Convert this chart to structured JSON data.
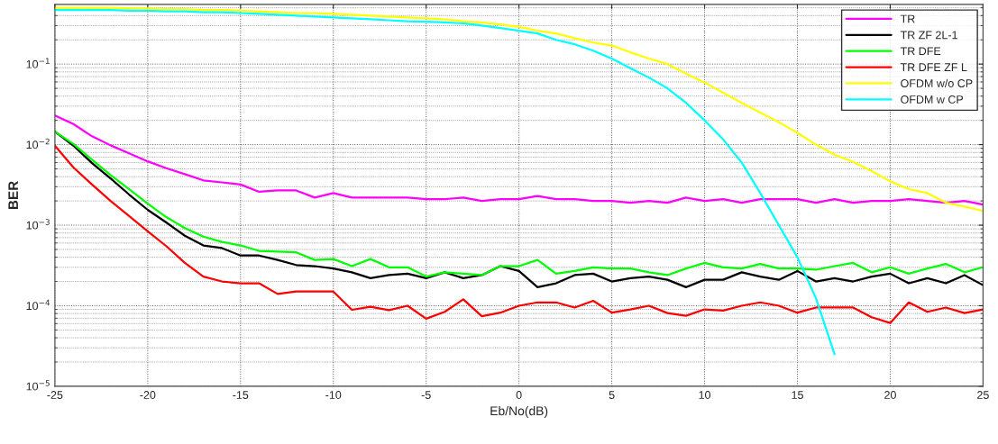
{
  "chart_data": {
    "type": "line",
    "xlabel": "Eb/No(dB)",
    "ylabel": "BER",
    "log": "y",
    "grid": true,
    "legend": "top right",
    "line_style": "solid",
    "marker": "none",
    "xlim": [
      -25,
      25
    ],
    "xticks": [
      -25,
      -20,
      -15,
      -10,
      -5,
      0,
      5,
      10,
      15,
      20,
      25
    ],
    "ylim": [
      1e-05,
      0.55
    ],
    "yticks": [
      {
        "value": 1e-05,
        "label": "10$^{−5}$"
      },
      {
        "value": 0.0001,
        "label": "10$^{−4}$"
      },
      {
        "value": 0.001,
        "label": "10$^{−3}$"
      },
      {
        "value": 0.01,
        "label": "10$^{−2}$"
      },
      {
        "value": 0.1,
        "label": "10$^{−1}$"
      }
    ],
    "x": [
      -25,
      -24,
      -23,
      -22,
      -21,
      -20,
      -19,
      -18,
      -17,
      -16,
      -15,
      -14,
      -13,
      -12,
      -11,
      -10,
      -9,
      -8,
      -7,
      -6,
      -5,
      -4,
      -3,
      -2,
      -1,
      0,
      1,
      2,
      3,
      4,
      5,
      6,
      7,
      8,
      9,
      10,
      11,
      12,
      13,
      14,
      15,
      16,
      17,
      18,
      19,
      20,
      21,
      22,
      23,
      24,
      25
    ],
    "series": [
      {
        "name": "TR",
        "color": "#ff00ff",
        "values": [
          0.023,
          0.018,
          0.0127,
          0.0098,
          0.0078,
          0.0062,
          0.0051,
          0.0043,
          0.0036,
          0.0034,
          0.0032,
          0.0026,
          0.0027,
          0.0027,
          0.0022,
          0.0025,
          0.0022,
          0.0022,
          0.0022,
          0.0022,
          0.0021,
          0.0021,
          0.0022,
          0.002,
          0.0021,
          0.0021,
          0.0023,
          0.0021,
          0.0021,
          0.002,
          0.002,
          0.0019,
          0.002,
          0.0019,
          0.0022,
          0.002,
          0.0021,
          0.0019,
          0.0021,
          0.0021,
          0.0021,
          0.0019,
          0.0021,
          0.0019,
          0.002,
          0.002,
          0.0021,
          0.002,
          0.0019,
          0.002,
          0.0018
        ]
      },
      {
        "name": "TR ZF 2L-1",
        "color": "#000000",
        "values": [
          0.0145,
          0.0097,
          0.0059,
          0.0038,
          0.0024,
          0.00155,
          0.00108,
          0.00074,
          0.00056,
          0.00052,
          0.00042,
          0.00042,
          0.00037,
          0.00032,
          0.00031,
          0.00029,
          0.00026,
          0.00022,
          0.00024,
          0.00025,
          0.00022,
          0.00026,
          0.00022,
          0.00024,
          0.00031,
          0.00027,
          0.00017,
          0.00019,
          0.00024,
          0.00025,
          0.0002,
          0.00022,
          0.00023,
          0.00021,
          0.00017,
          0.00021,
          0.00021,
          0.00026,
          0.00023,
          0.00021,
          0.00027,
          0.0002,
          0.00022,
          0.0002,
          0.00023,
          0.00025,
          0.00019,
          0.00022,
          0.00019,
          0.00024,
          0.00018
        ]
      },
      {
        "name": "TR DFE",
        "color": "#00ff00",
        "values": [
          0.0145,
          0.0102,
          0.0065,
          0.0042,
          0.0028,
          0.00185,
          0.00126,
          0.00092,
          0.00072,
          0.00062,
          0.00056,
          0.00048,
          0.00047,
          0.00046,
          0.00037,
          0.00038,
          0.00031,
          0.00038,
          0.0003,
          0.0003,
          0.00023,
          0.00026,
          0.00025,
          0.00024,
          0.00031,
          0.00031,
          0.00037,
          0.00025,
          0.00027,
          0.0003,
          0.00029,
          0.00029,
          0.00026,
          0.00024,
          0.00029,
          0.00034,
          0.0003,
          0.00029,
          0.00033,
          0.00029,
          0.00029,
          0.00028,
          0.00031,
          0.00034,
          0.00026,
          0.0003,
          0.00025,
          0.00029,
          0.00033,
          0.00026,
          0.0003
        ]
      },
      {
        "name": "TR DFE ZF L",
        "color": "#ff0000",
        "values": [
          0.0097,
          0.0052,
          0.0032,
          0.002,
          0.0013,
          0.00084,
          0.00055,
          0.00034,
          0.00023,
          0.0002,
          0.00019,
          0.00019,
          0.00014,
          0.00015,
          0.00015,
          0.00015,
          8.9e-05,
          9.7e-05,
          8.8e-05,
          0.0001,
          6.9e-05,
          8.4e-05,
          0.00012,
          7.4e-05,
          8.2e-05,
          0.0001,
          0.00011,
          0.00011,
          9.5e-05,
          0.000115,
          8.2e-05,
          9e-05,
          0.0001,
          8.1e-05,
          7.5e-05,
          9e-05,
          8.7e-05,
          0.0001,
          0.00011,
          0.0001,
          8.2e-05,
          9.5e-05,
          9.5e-05,
          9.5e-05,
          7.2e-05,
          6.1e-05,
          0.00011,
          8.4e-05,
          9.5e-05,
          8.1e-05,
          9e-05
        ]
      },
      {
        "name": "OFDM w/o CP",
        "color": "#ffff00",
        "values": [
          0.5,
          0.5,
          0.5,
          0.5,
          0.49,
          0.49,
          0.48,
          0.48,
          0.47,
          0.47,
          0.46,
          0.45,
          0.44,
          0.43,
          0.43,
          0.42,
          0.41,
          0.4,
          0.39,
          0.38,
          0.37,
          0.36,
          0.34,
          0.33,
          0.31,
          0.29,
          0.26,
          0.24,
          0.21,
          0.185,
          0.17,
          0.14,
          0.117,
          0.1,
          0.076,
          0.059,
          0.044,
          0.033,
          0.025,
          0.019,
          0.014,
          0.01,
          0.0075,
          0.0061,
          0.0047,
          0.0035,
          0.0028,
          0.0025,
          0.0019,
          0.0017,
          0.0015
        ]
      },
      {
        "name": "OFDM w CP",
        "color": "#00ffff",
        "values": [
          0.47,
          0.47,
          0.47,
          0.47,
          0.46,
          0.46,
          0.45,
          0.45,
          0.44,
          0.44,
          0.43,
          0.42,
          0.41,
          0.4,
          0.39,
          0.38,
          0.37,
          0.36,
          0.35,
          0.34,
          0.335,
          0.33,
          0.32,
          0.3,
          0.28,
          0.26,
          0.24,
          0.2,
          0.176,
          0.147,
          0.117,
          0.089,
          0.068,
          0.05,
          0.033,
          0.02,
          0.0116,
          0.006,
          0.0025,
          0.001,
          0.0004,
          0.000124,
          2.5e-05,
          null,
          null,
          null,
          null,
          null,
          null,
          null,
          null
        ]
      }
    ]
  }
}
